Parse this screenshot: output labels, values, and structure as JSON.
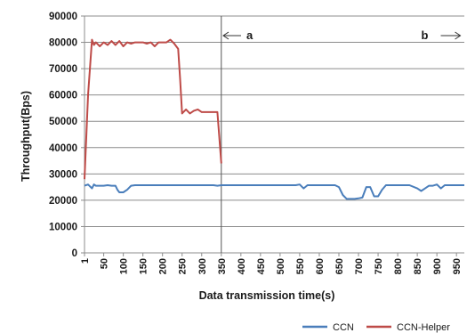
{
  "chart_data": {
    "type": "line",
    "title": "",
    "xlabel": "Data transmission  time(s)",
    "ylabel": "Throughput(Bps)",
    "ylim": [
      0,
      90000
    ],
    "yticks": [
      0,
      10000,
      20000,
      30000,
      40000,
      50000,
      60000,
      70000,
      80000,
      90000
    ],
    "xlim": [
      1,
      970
    ],
    "xtick_labels": [
      "1",
      "50",
      "100",
      "150",
      "200",
      "250",
      "300",
      "350",
      "400",
      "450",
      "500",
      "550",
      "600",
      "650",
      "700",
      "750",
      "800",
      "850",
      "900",
      "950"
    ],
    "grid": "horizontal",
    "legend_position": "bottom-right",
    "divider_x": 350,
    "annotations": [
      {
        "text": "a",
        "arrow": "left",
        "x": 355
      },
      {
        "text": "b",
        "arrow": "right",
        "x": 860
      }
    ],
    "series": [
      {
        "name": "CCN",
        "color": "#4a7ebb",
        "x": [
          1,
          10,
          20,
          25,
          30,
          40,
          50,
          60,
          70,
          80,
          85,
          90,
          100,
          110,
          120,
          130,
          150,
          200,
          250,
          300,
          330,
          340,
          350,
          400,
          450,
          500,
          530,
          540,
          550,
          560,
          570,
          600,
          640,
          650,
          660,
          670,
          680,
          690,
          700,
          710,
          720,
          730,
          740,
          750,
          760,
          770,
          780,
          800,
          830,
          850,
          860,
          870,
          880,
          890,
          900,
          910,
          920,
          950,
          970
        ],
        "values": [
          25500,
          26000,
          24500,
          26000,
          25500,
          25500,
          25500,
          25700,
          25500,
          25500,
          24000,
          23000,
          23000,
          24000,
          25500,
          25700,
          25700,
          25700,
          25700,
          25700,
          25700,
          25500,
          25700,
          25700,
          25700,
          25700,
          25700,
          25700,
          26000,
          24500,
          25700,
          25700,
          25700,
          25000,
          22000,
          20500,
          20500,
          20500,
          20700,
          21000,
          25000,
          25000,
          21500,
          21500,
          24000,
          25700,
          25700,
          25700,
          25700,
          24500,
          23500,
          24500,
          25500,
          25500,
          26000,
          24500,
          25700,
          25700,
          25700
        ]
      },
      {
        "name": "CCN-Helper",
        "color": "#be4b48",
        "x": [
          1,
          10,
          20,
          25,
          30,
          40,
          50,
          60,
          70,
          80,
          90,
          100,
          110,
          120,
          130,
          140,
          150,
          160,
          170,
          180,
          190,
          200,
          210,
          220,
          230,
          240,
          245,
          250,
          260,
          270,
          280,
          290,
          300,
          310,
          320,
          330,
          340,
          350
        ],
        "values": [
          28000,
          60000,
          81000,
          79000,
          80000,
          78500,
          80000,
          79000,
          80500,
          79000,
          80500,
          78500,
          80000,
          79500,
          80000,
          80000,
          80000,
          79500,
          80000,
          78500,
          80000,
          80000,
          80000,
          81000,
          79500,
          77500,
          66000,
          53000,
          54500,
          53000,
          54000,
          54500,
          53500,
          53500,
          53500,
          53500,
          53500,
          34000
        ]
      }
    ]
  }
}
